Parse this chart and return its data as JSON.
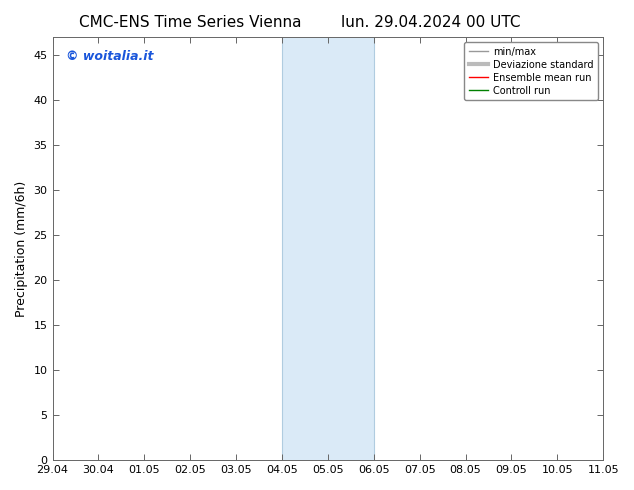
{
  "title_left": "CMC-ENS Time Series Vienna",
  "title_right": "lun. 29.04.2024 00 UTC",
  "ylabel": "Precipitation (mm/6h)",
  "xlim": [
    0,
    12
  ],
  "ylim": [
    0,
    47
  ],
  "yticks": [
    0,
    5,
    10,
    15,
    20,
    25,
    30,
    35,
    40,
    45
  ],
  "xtick_labels": [
    "29.04",
    "30.04",
    "01.05",
    "02.05",
    "03.05",
    "04.05",
    "05.05",
    "06.05",
    "07.05",
    "08.05",
    "09.05",
    "10.05",
    "11.05"
  ],
  "xtick_positions": [
    0,
    1,
    2,
    3,
    4,
    5,
    6,
    7,
    8,
    9,
    10,
    11,
    12
  ],
  "shaded_region": [
    5,
    7
  ],
  "shaded_color": "#daeaf7",
  "background_color": "#ffffff",
  "watermark_text": "© woitalia.it",
  "watermark_color": "#1a56db",
  "legend_items": [
    {
      "label": "min/max",
      "color": "#999999",
      "lw": 1
    },
    {
      "label": "Deviazione standard",
      "color": "#bbbbbb",
      "lw": 3
    },
    {
      "label": "Ensemble mean run",
      "color": "#ff0000",
      "lw": 1
    },
    {
      "label": "Controll run",
      "color": "#008000",
      "lw": 1
    }
  ],
  "title_fontsize": 11,
  "tick_fontsize": 8,
  "ylabel_fontsize": 9,
  "legend_fontsize": 7,
  "watermark_fontsize": 9
}
